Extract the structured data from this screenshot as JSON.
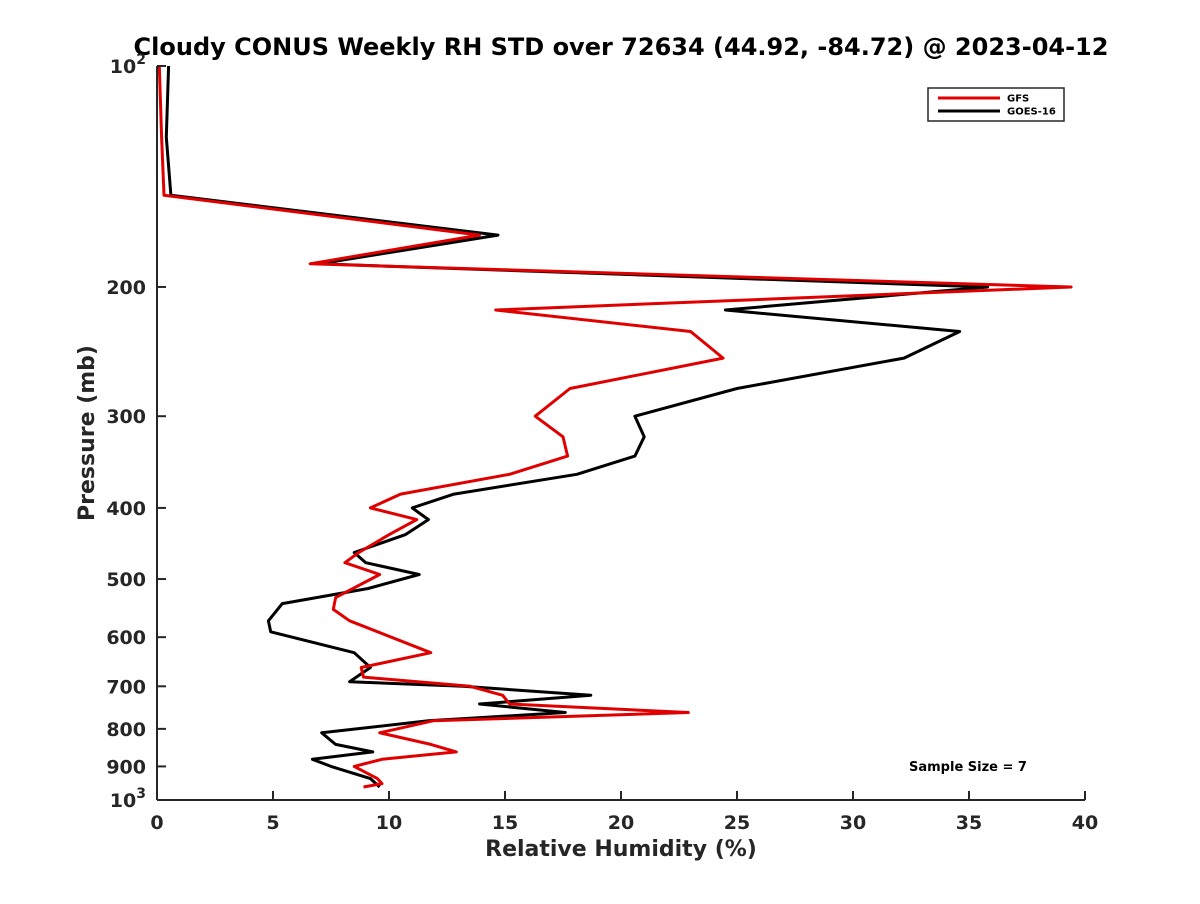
{
  "chart_data": {
    "type": "line",
    "title": "Cloudy CONUS Weekly RH STD over 72634 (44.92, -84.72) @ 2023-04-12",
    "xlabel": "Relative Humidity (%)",
    "ylabel": "Pressure (mb)",
    "xlim": [
      0,
      40
    ],
    "ylim": [
      100,
      1000
    ],
    "yscale": "log",
    "y_reversed": true,
    "grid": false,
    "x_ticks": [
      0,
      5,
      10,
      15,
      20,
      25,
      30,
      35,
      40
    ],
    "x_tick_labels": [
      "0",
      "5",
      "10",
      "15",
      "20",
      "25",
      "30",
      "35",
      "40"
    ],
    "y_ticks": [
      100,
      200,
      300,
      400,
      500,
      600,
      700,
      800,
      900,
      1000
    ],
    "y_tick_labels": [
      {
        "base": "10",
        "exp": "2"
      },
      {
        "base": "200"
      },
      {
        "base": "300"
      },
      {
        "base": "400"
      },
      {
        "base": "500"
      },
      {
        "base": "600"
      },
      {
        "base": "700"
      },
      {
        "base": "800"
      },
      {
        "base": "900"
      },
      {
        "base": "10",
        "exp": "3"
      }
    ],
    "legend_position": "top-right",
    "annotation": "Sample Size = 7",
    "series": [
      {
        "name": "GFS",
        "color": "#e00000",
        "points": [
          [
            0.1,
            100
          ],
          [
            0.2,
            125
          ],
          [
            0.3,
            150
          ],
          [
            13.9,
            170
          ],
          [
            6.6,
            186
          ],
          [
            39.4,
            200
          ],
          [
            14.6,
            215
          ],
          [
            23.0,
            230
          ],
          [
            24.4,
            250
          ],
          [
            17.8,
            275
          ],
          [
            16.3,
            300
          ],
          [
            17.5,
            320
          ],
          [
            17.7,
            340
          ],
          [
            15.2,
            360
          ],
          [
            10.5,
            383
          ],
          [
            9.2,
            400
          ],
          [
            11.2,
            415
          ],
          [
            10.0,
            435
          ],
          [
            8.7,
            460
          ],
          [
            8.1,
            475
          ],
          [
            9.6,
            493
          ],
          [
            7.7,
            530
          ],
          [
            7.6,
            550
          ],
          [
            8.3,
            570
          ],
          [
            11.8,
            630
          ],
          [
            8.8,
            660
          ],
          [
            8.9,
            680
          ],
          [
            13.5,
            700
          ],
          [
            14.9,
            720
          ],
          [
            15.2,
            740
          ],
          [
            22.9,
            760
          ],
          [
            11.9,
            780
          ],
          [
            9.6,
            810
          ],
          [
            11.8,
            840
          ],
          [
            12.9,
            860
          ],
          [
            9.7,
            880
          ],
          [
            8.5,
            900
          ],
          [
            9.5,
            935
          ],
          [
            9.7,
            950
          ],
          [
            8.9,
            960
          ]
        ]
      },
      {
        "name": "GOES-16",
        "color": "#000000",
        "points": [
          [
            0.5,
            100
          ],
          [
            0.4,
            125
          ],
          [
            0.6,
            150
          ],
          [
            14.7,
            170
          ],
          [
            7.0,
            186
          ],
          [
            35.8,
            200
          ],
          [
            24.5,
            215
          ],
          [
            34.6,
            230
          ],
          [
            32.2,
            250
          ],
          [
            25.0,
            275
          ],
          [
            20.6,
            300
          ],
          [
            21.0,
            320
          ],
          [
            20.6,
            340
          ],
          [
            18.1,
            360
          ],
          [
            12.8,
            383
          ],
          [
            11.0,
            400
          ],
          [
            11.7,
            415
          ],
          [
            10.7,
            435
          ],
          [
            8.5,
            460
          ],
          [
            9.0,
            475
          ],
          [
            11.3,
            493
          ],
          [
            9.1,
            515
          ],
          [
            5.4,
            540
          ],
          [
            4.8,
            570
          ],
          [
            4.9,
            590
          ],
          [
            8.5,
            630
          ],
          [
            9.2,
            660
          ],
          [
            8.3,
            690
          ],
          [
            13.2,
            700
          ],
          [
            18.7,
            720
          ],
          [
            13.9,
            740
          ],
          [
            17.6,
            760
          ],
          [
            11.7,
            780
          ],
          [
            7.1,
            810
          ],
          [
            7.7,
            840
          ],
          [
            9.3,
            860
          ],
          [
            6.7,
            880
          ],
          [
            7.5,
            900
          ],
          [
            9.2,
            935
          ],
          [
            9.6,
            960
          ]
        ]
      }
    ]
  }
}
